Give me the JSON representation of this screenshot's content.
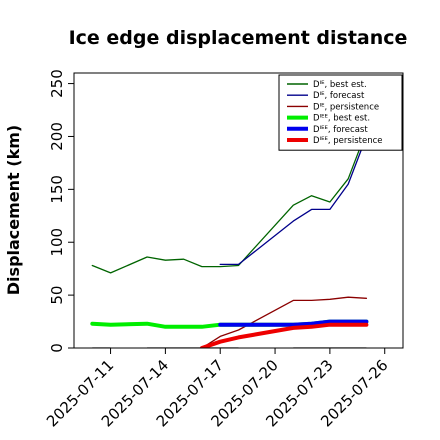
{
  "chart_data": {
    "type": "line",
    "title": "Ice edge displacement distance",
    "xlabel": "",
    "ylabel": "Displacement (km)",
    "ylim": [
      0,
      260
    ],
    "xlim": [
      "2025-07-09",
      "2025-07-27"
    ],
    "yticks": [
      "0",
      "50",
      "100",
      "150",
      "200",
      "250"
    ],
    "xticks": [
      {
        "label": "2025-07-11",
        "date": "2025-07-11",
        "color": "#000000"
      },
      {
        "label": "2025-07-14",
        "date": "2025-07-14",
        "color": "#000000"
      },
      {
        "label": "2025-07-17",
        "date": "2025-07-17",
        "color": "#228b22"
      },
      {
        "label": "2025-07-20",
        "date": "2025-07-20",
        "color": "#000000"
      },
      {
        "label": "2025-07-23",
        "date": "2025-07-23",
        "color": "#000000"
      },
      {
        "label": "2025-07-26",
        "date": "2025-07-26",
        "color": "#000000"
      }
    ],
    "legend_position": "top-right",
    "series": [
      {
        "name": "Dᴵᴱ, best est.",
        "color": "#006400",
        "width": "thin",
        "x": [
          "2025-07-10",
          "2025-07-11",
          "2025-07-13",
          "2025-07-14",
          "2025-07-15",
          "2025-07-16",
          "2025-07-17",
          "2025-07-18",
          "2025-07-21",
          "2025-07-22",
          "2025-07-23",
          "2025-07-24",
          "2025-07-25"
        ],
        "y": [
          78,
          71,
          86,
          83,
          84,
          77,
          77,
          78,
          135,
          144,
          138,
          160,
          205
        ]
      },
      {
        "name": "Dᴵᴱ, forecast",
        "color": "#00008b",
        "width": "thin",
        "x": [
          "2025-07-17",
          "2025-07-18",
          "2025-07-21",
          "2025-07-22",
          "2025-07-23",
          "2025-07-24",
          "2025-07-25"
        ],
        "y": [
          79,
          79,
          120,
          131,
          131,
          155,
          200
        ]
      },
      {
        "name": "Dᴵᴱ, persistence",
        "color": "#8b0000",
        "width": "thin",
        "x": [
          "2025-07-16",
          "2025-07-17",
          "2025-07-18",
          "2025-07-21",
          "2025-07-22",
          "2025-07-23",
          "2025-07-24",
          "2025-07-25"
        ],
        "y": [
          0,
          11,
          17,
          45,
          45,
          46,
          48,
          47
        ]
      },
      {
        "name": "Dᴵᴱᴱ, best est.",
        "color": "#00ee00",
        "width": "thick",
        "x": [
          "2025-07-10",
          "2025-07-11",
          "2025-07-13",
          "2025-07-14",
          "2025-07-15",
          "2025-07-16",
          "2025-07-17",
          "2025-07-18",
          "2025-07-21",
          "2025-07-22",
          "2025-07-23",
          "2025-07-24",
          "2025-07-25"
        ],
        "y": [
          23,
          22,
          23,
          20,
          20,
          20,
          22,
          22,
          22,
          23,
          25,
          25,
          25
        ]
      },
      {
        "name": "Dᴵᴱᴱ, forecast",
        "color": "#0000ee",
        "width": "thick",
        "x": [
          "2025-07-17",
          "2025-07-18",
          "2025-07-21",
          "2025-07-22",
          "2025-07-23",
          "2025-07-24",
          "2025-07-25"
        ],
        "y": [
          22,
          22,
          22,
          23,
          25,
          25,
          25
        ]
      },
      {
        "name": "Dᴵᴱᴱ, persistence",
        "color": "#ee0000",
        "width": "thick",
        "x": [
          "2025-07-16",
          "2025-07-17",
          "2025-07-18",
          "2025-07-21",
          "2025-07-22",
          "2025-07-23",
          "2025-07-24",
          "2025-07-25"
        ],
        "y": [
          0,
          6,
          10,
          19,
          20,
          22,
          22,
          22
        ]
      }
    ],
    "zero_reference_segments": [
      {
        "color": "#808080",
        "x": [
          "2025-07-10",
          "2025-07-11"
        ],
        "y": [
          0,
          0
        ]
      },
      {
        "color": "#808080",
        "x": [
          "2025-07-13",
          "2025-07-18"
        ],
        "y": [
          0,
          0
        ]
      },
      {
        "color": "#808080",
        "x": [
          "2025-07-21",
          "2025-07-25"
        ],
        "y": [
          0,
          0
        ]
      }
    ]
  }
}
